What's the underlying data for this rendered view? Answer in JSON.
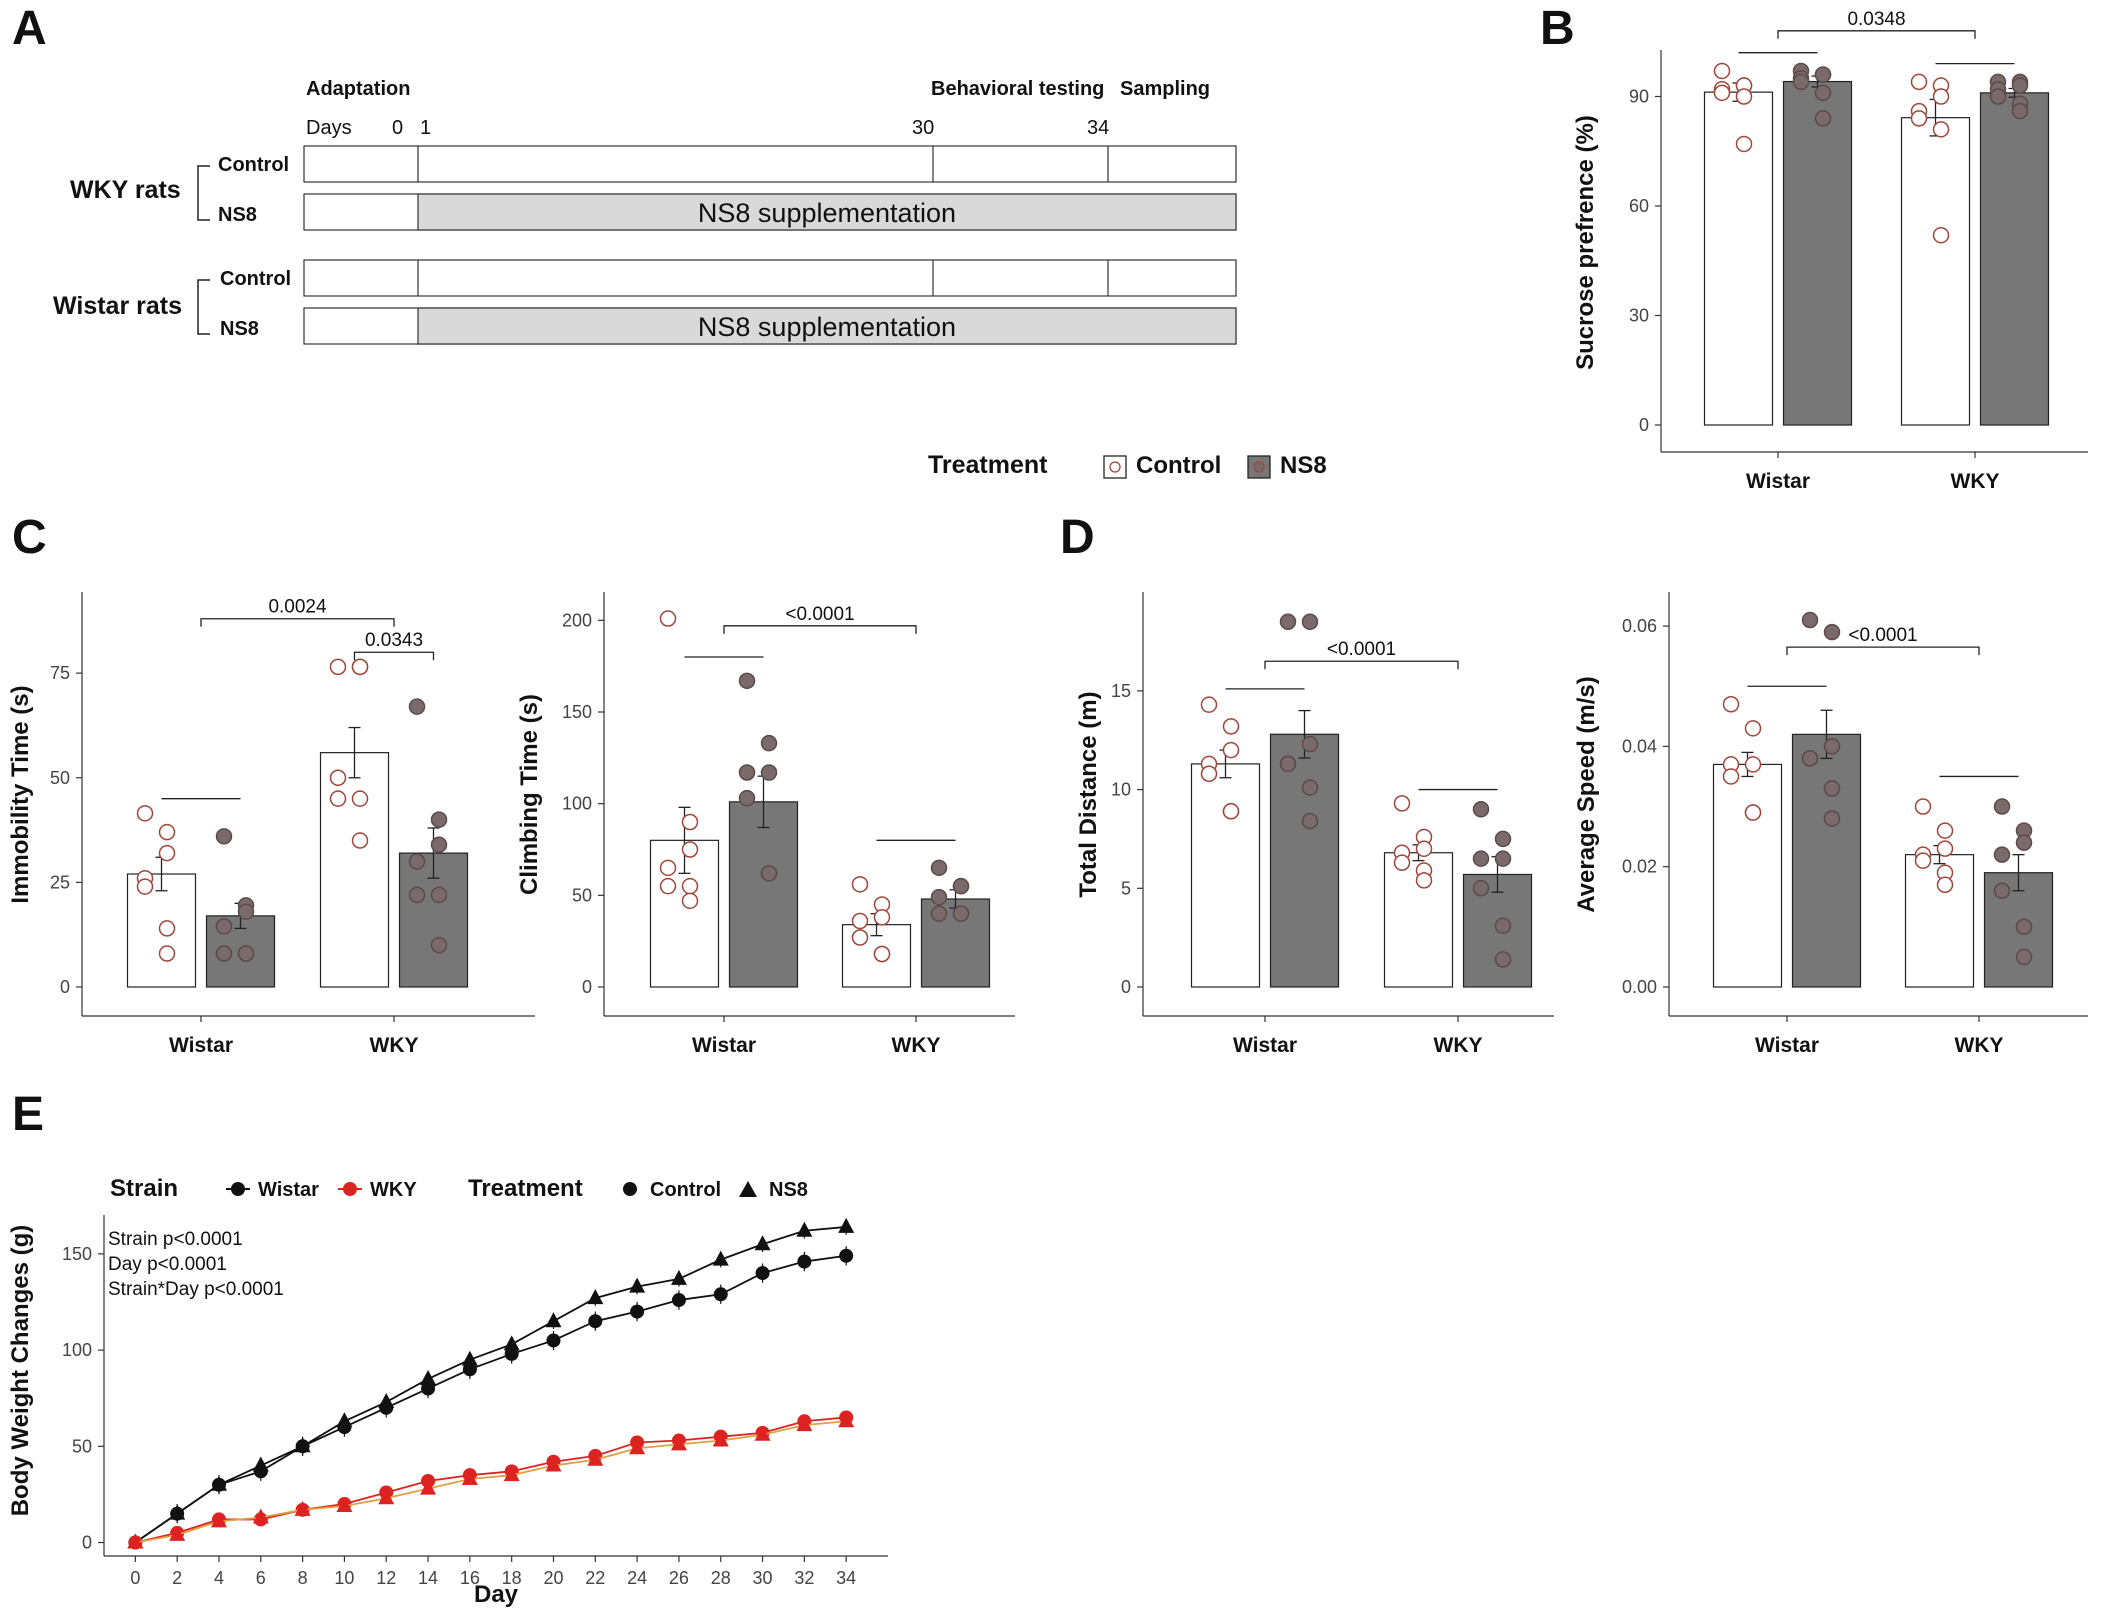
{
  "panels": {
    "A": "A",
    "B": "B",
    "C": "C",
    "D": "D",
    "E": "E"
  },
  "timeline": {
    "headers": {
      "adaptation": "Adaptation",
      "behavioral": "Behavioral testing",
      "sampling": "Sampling"
    },
    "days_label": "Days",
    "day_ticks": [
      "0",
      "1",
      "30",
      "34"
    ],
    "groups": [
      {
        "name": "WKY  rats",
        "rows": [
          {
            "label": "Control",
            "bar_text": ""
          },
          {
            "label": "NS8",
            "bar_text": "NS8 supplementation"
          }
        ]
      },
      {
        "name": "Wistar rats",
        "rows": [
          {
            "label": "Control",
            "bar_text": ""
          },
          {
            "label": "NS8",
            "bar_text": "NS8 supplementation"
          }
        ]
      }
    ]
  },
  "legend_treatment": {
    "title": "Treatment",
    "items": [
      "Control",
      "NS8"
    ]
  },
  "legend_e": {
    "strain_title": "Strain",
    "strain_items": [
      "Wistar",
      "WKY"
    ],
    "treatment_title": "Treatment",
    "treatment_items": [
      "Control",
      "NS8"
    ]
  },
  "colors": {
    "control_fill": "#ffffff",
    "ns8_fill": "#777777",
    "control_point_stroke": "#a0453a",
    "ns8_point_fill": "#7a6a6a",
    "timeline_fill": "#d9d9d9",
    "wistar": "#111111",
    "wky": "#dd2222"
  },
  "chart_data": [
    {
      "id": "B",
      "type": "bar",
      "title": "",
      "ylabel": "Sucrose prefrence (%)",
      "ylim": [
        0,
        100
      ],
      "yticks": [
        0,
        30,
        60,
        90
      ],
      "categories": [
        "Wistar",
        "WKY"
      ],
      "series": [
        {
          "name": "Control",
          "values": [
            91.2,
            84.2
          ],
          "sem": [
            2.5,
            5.0
          ],
          "points": [
            [
              97,
              93,
              93,
              92,
              91,
              90,
              77
            ],
            [
              94,
              93,
              90,
              86,
              84,
              81,
              52
            ]
          ]
        },
        {
          "name": "NS8",
          "values": [
            94.1,
            91.0
          ],
          "sem": [
            1.5,
            1.2
          ],
          "points": [
            [
              97,
              96,
              96,
              95,
              94,
              91,
              84
            ],
            [
              94,
              94,
              93,
              92,
              90,
              88,
              86
            ]
          ]
        }
      ],
      "annotations": [
        {
          "label": "0.0348",
          "from": 0,
          "to": 1,
          "y": 108
        },
        {
          "label": "",
          "from": 0,
          "to": 0,
          "y": 102
        },
        {
          "label": "",
          "from": 1,
          "to": 1,
          "y": 99
        }
      ]
    },
    {
      "id": "C1",
      "type": "bar",
      "ylabel": "Immobility Time (s)",
      "ylim": [
        0,
        92
      ],
      "yticks": [
        0,
        25,
        50,
        75
      ],
      "categories": [
        "Wistar",
        "WKY"
      ],
      "series": [
        {
          "name": "Control",
          "values": [
            27,
            56
          ],
          "sem": [
            4,
            6
          ],
          "points": [
            [
              41.5,
              37,
              32,
              26,
              24,
              14,
              8
            ],
            [
              76.5,
              76.5,
              76.5,
              50,
              45,
              45,
              35
            ]
          ]
        },
        {
          "name": "NS8",
          "values": [
            17,
            32
          ],
          "sem": [
            3,
            6
          ],
          "points": [
            [
              36,
              19.5,
              18,
              14.5,
              8,
              8,
              8
            ],
            [
              67,
              40,
              34,
              30,
              22,
              22,
              10
            ]
          ]
        }
      ],
      "annotations": [
        {
          "label": "0.0024",
          "from": 0,
          "to": 1,
          "y": 88
        },
        {
          "label": "0.0343",
          "from": 1,
          "to": 1,
          "y": 80
        },
        {
          "label": "",
          "from": 0,
          "to": 0,
          "y": 45
        }
      ]
    },
    {
      "id": "C2",
      "type": "bar",
      "ylabel": "Climbing Time (s)",
      "ylim": [
        0,
        210
      ],
      "yticks": [
        0,
        50,
        100,
        150,
        200
      ],
      "categories": [
        "Wistar",
        "WKY"
      ],
      "series": [
        {
          "name": "Control",
          "values": [
            80,
            34
          ],
          "sem": [
            18,
            6
          ],
          "points": [
            [
              201,
              90,
              75,
              65,
              55,
              55,
              47
            ],
            [
              56,
              45,
              38,
              36,
              27,
              18,
              18
            ]
          ]
        },
        {
          "name": "NS8",
          "values": [
            101,
            48
          ],
          "sem": [
            14,
            5
          ],
          "points": [
            [
              167,
              133,
              117,
              117,
              103,
              62,
              62
            ],
            [
              65,
              55,
              55,
              49,
              40,
              40,
              40
            ]
          ]
        }
      ],
      "annotations": [
        {
          "label": "<0.0001",
          "from": 0,
          "to": 1,
          "y": 197
        },
        {
          "label": "",
          "from": 0,
          "to": 0,
          "y": 180
        },
        {
          "label": "",
          "from": 1,
          "to": 1,
          "y": 80
        }
      ]
    },
    {
      "id": "D1",
      "type": "bar",
      "ylabel": "Total Distance (m)",
      "ylim": [
        0,
        19.5
      ],
      "yticks": [
        0,
        5,
        10,
        15
      ],
      "categories": [
        "Wistar",
        "WKY"
      ],
      "series": [
        {
          "name": "Control",
          "values": [
            11.3,
            6.8
          ],
          "sem": [
            0.7,
            0.4
          ],
          "points": [
            [
              14.3,
              13.2,
              12,
              11.3,
              10.8,
              8.9,
              8.9
            ],
            [
              9.3,
              7.6,
              7.0,
              6.8,
              6.3,
              5.9,
              5.4
            ]
          ]
        },
        {
          "name": "NS8",
          "values": [
            12.8,
            5.7
          ],
          "sem": [
            1.2,
            0.9
          ],
          "points": [
            [
              18.5,
              18.5,
              12.3,
              11.3,
              11.3,
              10.1,
              8.4
            ],
            [
              9.0,
              7.5,
              6.5,
              6.5,
              5.0,
              3.1,
              1.4
            ]
          ]
        }
      ],
      "annotations": [
        {
          "label": "<0.0001",
          "from": 0,
          "to": 1,
          "y": 16.5
        },
        {
          "label": "",
          "from": 0,
          "to": 0,
          "y": 15.1
        },
        {
          "label": "",
          "from": 1,
          "to": 1,
          "y": 10.0
        }
      ]
    },
    {
      "id": "D2",
      "type": "bar",
      "ylabel": "Average Speed (m/s)",
      "ylim": [
        0,
        0.064
      ],
      "yticks": [
        0.0,
        0.02,
        0.04,
        0.06
      ],
      "categories": [
        "Wistar",
        "WKY"
      ],
      "series": [
        {
          "name": "Control",
          "values": [
            0.037,
            0.022
          ],
          "sem": [
            0.002,
            0.0015
          ],
          "points": [
            [
              0.047,
              0.043,
              0.037,
              0.037,
              0.035,
              0.029,
              0.029
            ],
            [
              0.03,
              0.026,
              0.023,
              0.022,
              0.021,
              0.019,
              0.017
            ]
          ]
        },
        {
          "name": "NS8",
          "values": [
            0.042,
            0.019
          ],
          "sem": [
            0.004,
            0.003
          ],
          "points": [
            [
              0.061,
              0.059,
              0.04,
              0.038,
              0.038,
              0.033,
              0.028
            ],
            [
              0.03,
              0.026,
              0.024,
              0.022,
              0.016,
              0.01,
              0.005
            ]
          ]
        }
      ],
      "annotations": [
        {
          "label": "<0.0001",
          "from": 0,
          "to": 1,
          "y": 0.0565
        },
        {
          "label": "",
          "from": 0,
          "to": 0,
          "y": 0.05
        },
        {
          "label": "",
          "from": 1,
          "to": 1,
          "y": 0.035
        }
      ]
    },
    {
      "id": "E",
      "type": "line",
      "xlabel": "Day",
      "ylabel": "Body Weight Changes (g)",
      "ylim": [
        -7,
        165
      ],
      "yticks": [
        0,
        50,
        100,
        150
      ],
      "x": [
        0,
        2,
        4,
        6,
        8,
        10,
        12,
        14,
        16,
        18,
        20,
        22,
        24,
        26,
        28,
        30,
        32,
        34
      ],
      "xlim": [
        -1.5,
        36
      ],
      "stats": [
        "Strain p<0.0001",
        "Day     p<0.0001",
        "Strain*Day p<0.0001"
      ],
      "series": [
        {
          "name": "Wistar Control",
          "strain": "Wistar",
          "marker": "circle",
          "values": [
            0,
            15,
            30,
            37,
            50,
            60,
            70,
            80,
            90,
            98,
            105,
            115,
            120,
            126,
            129,
            140,
            146,
            149
          ],
          "sem": 5
        },
        {
          "name": "Wistar NS8",
          "strain": "Wistar",
          "marker": "triangle",
          "values": [
            0,
            15,
            30,
            40,
            50,
            63,
            73,
            85,
            95,
            103,
            115,
            127,
            133,
            137,
            147,
            155,
            162,
            164
          ],
          "sem": 4
        },
        {
          "name": "WKY Control",
          "strain": "WKY",
          "marker": "circle",
          "values": [
            0,
            5,
            12,
            12,
            17,
            20,
            26,
            32,
            35,
            37,
            42,
            45,
            52,
            53,
            55,
            57,
            63,
            65
          ],
          "sem": 2
        },
        {
          "name": "WKY NS8",
          "strain": "WKY",
          "marker": "triangle",
          "values": [
            0,
            4,
            11,
            13,
            17,
            19,
            23,
            28,
            33,
            35,
            40,
            43,
            49,
            51,
            53,
            56,
            61,
            63
          ],
          "sem": 2
        }
      ]
    }
  ]
}
